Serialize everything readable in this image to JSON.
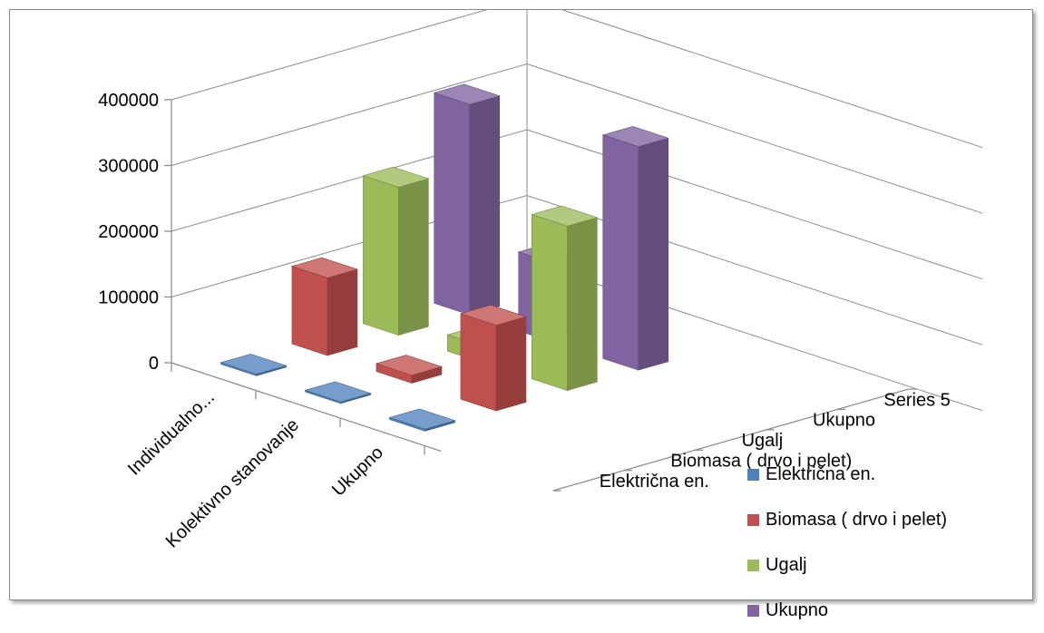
{
  "chart_data": {
    "type": "bar",
    "subtype": "3d-column",
    "categories": [
      "Individualno...",
      "Kolektivno stanovanje",
      "Ukupno"
    ],
    "depth_labels": [
      "Električna en.",
      "Biomasa ( drvo i pelet)",
      "Ugalj",
      "Ukupno",
      "Series 5"
    ],
    "series": [
      {
        "name": "Električna en.",
        "values": [
          2000,
          1500,
          3000
        ],
        "color": "#4f81bd"
      },
      {
        "name": "Biomasa ( drvo i pelet)",
        "values": [
          118000,
          12000,
          130000
        ],
        "color": "#c0504d"
      },
      {
        "name": "Ugalj",
        "values": [
          225000,
          25000,
          250000
        ],
        "color": "#9bbb59"
      },
      {
        "name": "Ukupno",
        "values": [
          320000,
          120000,
          340000
        ],
        "color": "#8064a2"
      }
    ],
    "yaxis": {
      "ticks": [
        "0",
        "100000",
        "200000",
        "300000",
        "400000"
      ],
      "ylim": [
        0,
        400000
      ]
    },
    "grid": true,
    "legend": {
      "position": "bottom-right"
    }
  }
}
